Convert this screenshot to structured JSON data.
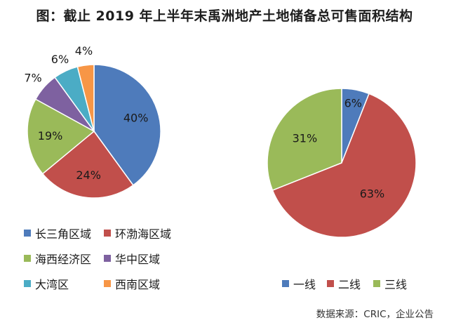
{
  "title": "图：截止 2019 年上半年末禹洲地产土地储备总可售面积结构",
  "source": "数据来源：CRIC，企业公告",
  "chart_data": [
    {
      "type": "pie",
      "categories": [
        "长三角区域",
        "环渤海区域",
        "海西经济区",
        "华中区域",
        "大湾区",
        "西南区域"
      ],
      "values": [
        40,
        24,
        19,
        7,
        6,
        4
      ],
      "labels": [
        "40%",
        "24%",
        "19%",
        "7%",
        "6%",
        "4%"
      ],
      "colors": [
        "#4e7bbb",
        "#c14f4b",
        "#9aba59",
        "#7e61a0",
        "#4bacc5",
        "#f79646"
      ],
      "legend_placement": "bottom"
    },
    {
      "type": "pie",
      "categories": [
        "一线",
        "二线",
        "三线"
      ],
      "values": [
        6,
        63,
        31
      ],
      "labels": [
        "6%",
        "63%",
        "31%"
      ],
      "colors": [
        "#4e7bbb",
        "#c14f4b",
        "#9aba59"
      ],
      "legend_placement": "bottom"
    }
  ]
}
